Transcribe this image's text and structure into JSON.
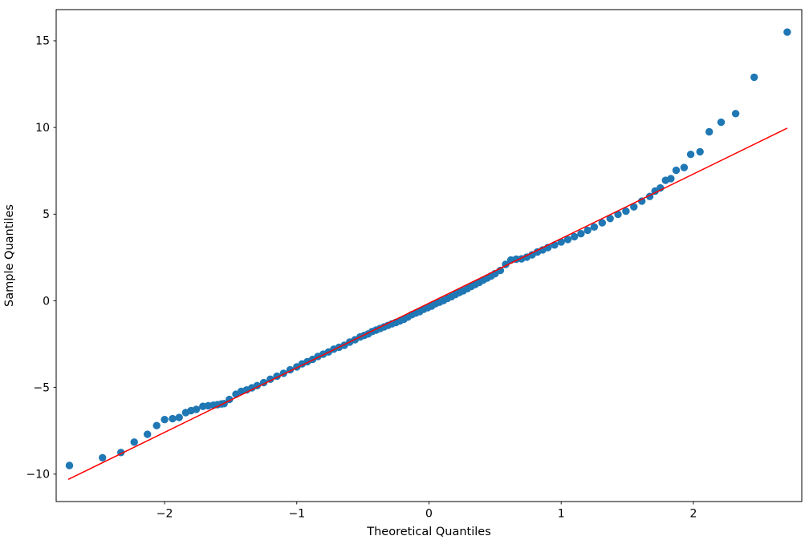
{
  "figure": {
    "background_color": "#ffffff",
    "plot_border_color": "#000000"
  },
  "chart_data": {
    "type": "scatter",
    "title": "",
    "xlabel": "Theoretical Quantiles",
    "ylabel": "Sample Quantiles",
    "xlim": [
      -2.82,
      2.82
    ],
    "ylim": [
      -11.58,
      16.8
    ],
    "grid": false,
    "legend": null,
    "x_ticks": [
      -2,
      -1,
      0,
      1,
      2
    ],
    "x_tick_labels": [
      "−2",
      "−1",
      "0",
      "1",
      "2"
    ],
    "y_ticks": [
      -10,
      -5,
      0,
      5,
      10,
      15
    ],
    "y_tick_labels": [
      "−10",
      "−5",
      "0",
      "5",
      "10",
      "15"
    ],
    "marker_color": "#1f77b4",
    "marker_radius": 4.7,
    "reference_line": {
      "color": "#ff0000",
      "width": 1.5,
      "x": [
        -2.725,
        2.707
      ],
      "y": [
        -10.29,
        9.95
      ]
    },
    "points": [
      [
        -2.72,
        -9.5
      ],
      [
        -2.47,
        -9.05
      ],
      [
        -2.33,
        -8.75
      ],
      [
        -2.23,
        -8.15
      ],
      [
        -2.13,
        -7.7
      ],
      [
        -2.06,
        -7.2
      ],
      [
        -2.0,
        -6.85
      ],
      [
        -1.94,
        -6.8
      ],
      [
        -1.89,
        -6.73
      ],
      [
        -1.84,
        -6.45
      ],
      [
        -1.8,
        -6.34
      ],
      [
        -1.76,
        -6.26
      ],
      [
        -1.71,
        -6.09
      ],
      [
        -1.67,
        -6.05
      ],
      [
        -1.63,
        -6.02
      ],
      [
        -1.6,
        -5.99
      ],
      [
        -1.57,
        -5.95
      ],
      [
        -1.55,
        -5.93
      ],
      [
        -1.51,
        -5.69
      ],
      [
        -1.46,
        -5.39
      ],
      [
        -1.42,
        -5.22
      ],
      [
        -1.38,
        -5.14
      ],
      [
        -1.34,
        -5.02
      ],
      [
        -1.3,
        -4.89
      ],
      [
        -1.25,
        -4.72
      ],
      [
        -1.2,
        -4.52
      ],
      [
        -1.15,
        -4.35
      ],
      [
        -1.1,
        -4.18
      ],
      [
        -1.05,
        -3.98
      ],
      [
        -1.0,
        -3.81
      ],
      [
        -0.96,
        -3.64
      ],
      [
        -0.92,
        -3.51
      ],
      [
        -0.88,
        -3.38
      ],
      [
        -0.84,
        -3.21
      ],
      [
        -0.8,
        -3.08
      ],
      [
        -0.76,
        -2.95
      ],
      [
        -0.72,
        -2.79
      ],
      [
        -0.68,
        -2.68
      ],
      [
        -0.64,
        -2.56
      ],
      [
        -0.6,
        -2.38
      ],
      [
        -0.56,
        -2.25
      ],
      [
        -0.52,
        -2.08
      ],
      [
        -0.49,
        -2.0
      ],
      [
        -0.46,
        -1.91
      ],
      [
        -0.43,
        -1.77
      ],
      [
        -0.4,
        -1.69
      ],
      [
        -0.37,
        -1.6
      ],
      [
        -0.34,
        -1.51
      ],
      [
        -0.31,
        -1.42
      ],
      [
        -0.28,
        -1.33
      ],
      [
        -0.25,
        -1.25
      ],
      [
        -0.22,
        -1.16
      ],
      [
        -0.19,
        -1.07
      ],
      [
        -0.16,
        -0.94
      ],
      [
        -0.13,
        -0.8
      ],
      [
        -0.1,
        -0.71
      ],
      [
        -0.07,
        -0.62
      ],
      [
        -0.04,
        -0.49
      ],
      [
        -0.01,
        -0.4
      ],
      [
        0.02,
        -0.3
      ],
      [
        0.05,
        -0.17
      ],
      [
        0.08,
        -0.08
      ],
      [
        0.11,
        0.02
      ],
      [
        0.14,
        0.14
      ],
      [
        0.17,
        0.24
      ],
      [
        0.2,
        0.36
      ],
      [
        0.23,
        0.48
      ],
      [
        0.26,
        0.58
      ],
      [
        0.29,
        0.7
      ],
      [
        0.32,
        0.83
      ],
      [
        0.35,
        0.94
      ],
      [
        0.38,
        1.06
      ],
      [
        0.41,
        1.19
      ],
      [
        0.44,
        1.31
      ],
      [
        0.47,
        1.43
      ],
      [
        0.5,
        1.57
      ],
      [
        0.54,
        1.75
      ],
      [
        0.58,
        2.1
      ],
      [
        0.62,
        2.35
      ],
      [
        0.66,
        2.4
      ],
      [
        0.7,
        2.42
      ],
      [
        0.74,
        2.52
      ],
      [
        0.78,
        2.65
      ],
      [
        0.82,
        2.82
      ],
      [
        0.86,
        2.94
      ],
      [
        0.9,
        3.07
      ],
      [
        0.95,
        3.22
      ],
      [
        1.0,
        3.39
      ],
      [
        1.05,
        3.54
      ],
      [
        1.1,
        3.7
      ],
      [
        1.15,
        3.87
      ],
      [
        1.2,
        4.07
      ],
      [
        1.25,
        4.26
      ],
      [
        1.31,
        4.5
      ],
      [
        1.37,
        4.75
      ],
      [
        1.43,
        4.99
      ],
      [
        1.49,
        5.17
      ],
      [
        1.55,
        5.42
      ],
      [
        1.61,
        5.75
      ],
      [
        1.67,
        6.02
      ],
      [
        1.71,
        6.33
      ],
      [
        1.75,
        6.51
      ],
      [
        1.79,
        6.95
      ],
      [
        1.83,
        7.05
      ],
      [
        1.87,
        7.53
      ],
      [
        1.93,
        7.69
      ],
      [
        1.98,
        8.45
      ],
      [
        2.05,
        8.6
      ],
      [
        2.12,
        9.75
      ],
      [
        2.21,
        10.3
      ],
      [
        2.32,
        10.8
      ],
      [
        2.46,
        12.9
      ],
      [
        2.71,
        15.5
      ]
    ]
  }
}
